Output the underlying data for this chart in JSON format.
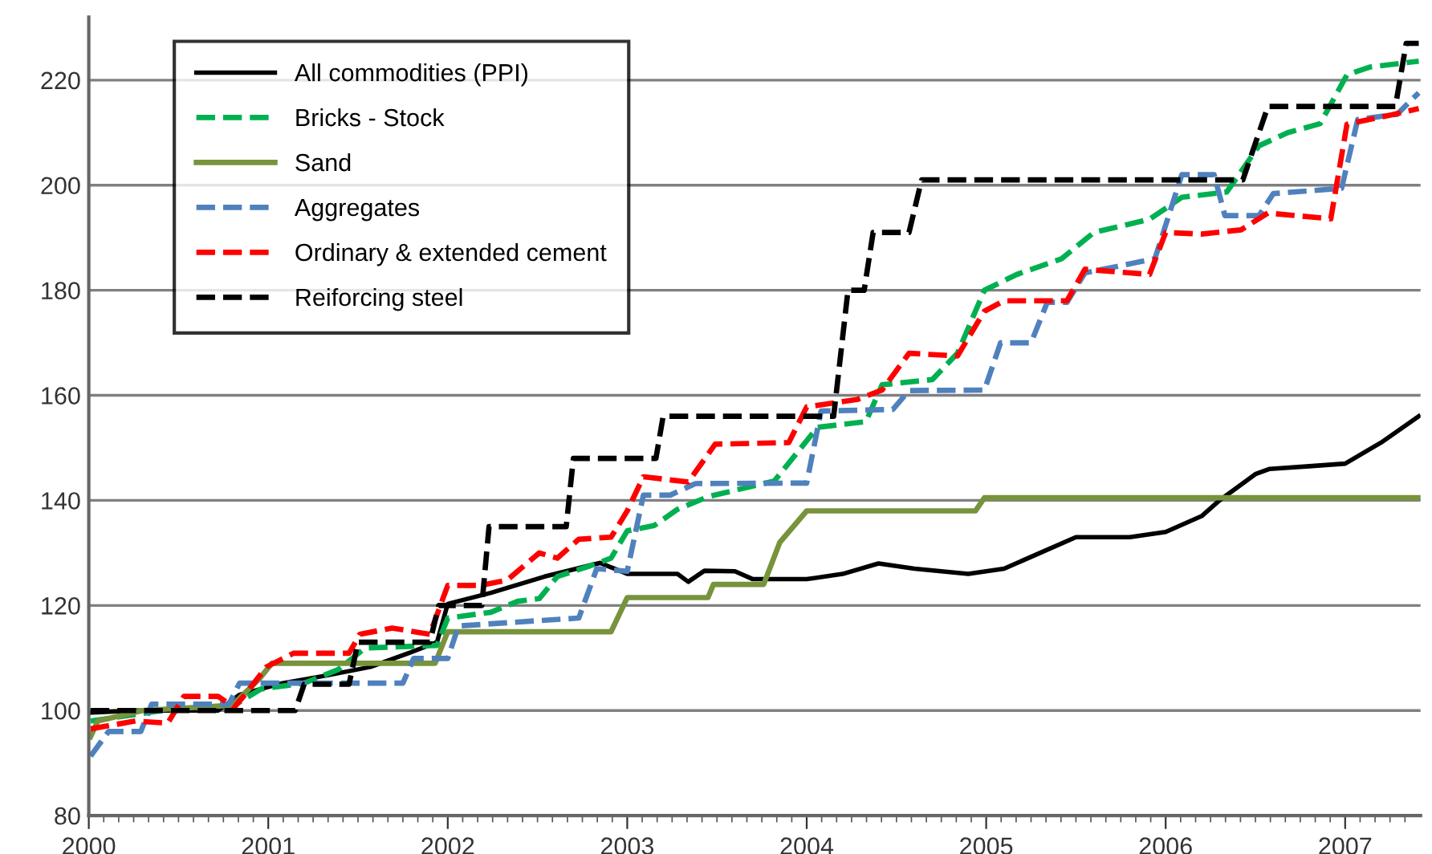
{
  "chart_data": {
    "type": "line",
    "xlim": [
      2000,
      2007.42
    ],
    "ylim": [
      80,
      232
    ],
    "yticks": [
      80,
      100,
      120,
      140,
      160,
      180,
      200,
      220
    ],
    "xticks": [
      2000,
      {
        "value": 2000.0833,
        "label": null
      },
      {
        "value": 2000.1667,
        "label": null
      },
      {
        "value": 2000.25,
        "label": null
      },
      {
        "value": 2000.3333,
        "label": null
      },
      {
        "value": 2000.4167,
        "label": null
      },
      {
        "value": 2000.5,
        "label": null
      },
      {
        "value": 2000.5833,
        "label": null
      },
      {
        "value": 2000.6667,
        "label": null
      },
      {
        "value": 2000.75,
        "label": null
      },
      {
        "value": 2000.8333,
        "label": null
      },
      {
        "value": 2000.9167,
        "label": null
      },
      2001,
      {
        "value": 2001.0833,
        "label": null
      },
      {
        "value": 2001.1667,
        "label": null
      },
      {
        "value": 2001.25,
        "label": null
      },
      {
        "value": 2001.3333,
        "label": null
      },
      {
        "value": 2001.4167,
        "label": null
      },
      {
        "value": 2001.5,
        "label": null
      },
      {
        "value": 2001.5833,
        "label": null
      },
      {
        "value": 2001.6667,
        "label": null
      },
      {
        "value": 2001.75,
        "label": null
      },
      {
        "value": 2001.8333,
        "label": null
      },
      {
        "value": 2001.9167,
        "label": null
      },
      2002,
      {
        "value": 2002.0833,
        "label": null
      },
      {
        "value": 2002.1667,
        "label": null
      },
      {
        "value": 2002.25,
        "label": null
      },
      {
        "value": 2002.3333,
        "label": null
      },
      {
        "value": 2002.4167,
        "label": null
      },
      {
        "value": 2002.5,
        "label": null
      },
      {
        "value": 2002.5833,
        "label": null
      },
      {
        "value": 2002.6667,
        "label": null
      },
      {
        "value": 2002.75,
        "label": null
      },
      {
        "value": 2002.8333,
        "label": null
      },
      {
        "value": 2002.9167,
        "label": null
      },
      2003,
      {
        "value": 2003.0833,
        "label": null
      },
      {
        "value": 2003.1667,
        "label": null
      },
      {
        "value": 2003.25,
        "label": null
      },
      {
        "value": 2003.3333,
        "label": null
      },
      {
        "value": 2003.4167,
        "label": null
      },
      {
        "value": 2003.5,
        "label": null
      },
      {
        "value": 2003.5833,
        "label": null
      },
      {
        "value": 2003.6667,
        "label": null
      },
      {
        "value": 2003.75,
        "label": null
      },
      {
        "value": 2003.8333,
        "label": null
      },
      {
        "value": 2003.9167,
        "label": null
      },
      2004,
      {
        "value": 2004.0833,
        "label": null
      },
      {
        "value": 2004.1667,
        "label": null
      },
      {
        "value": 2004.25,
        "label": null
      },
      {
        "value": 2004.3333,
        "label": null
      },
      {
        "value": 2004.4167,
        "label": null
      },
      {
        "value": 2004.5,
        "label": null
      },
      {
        "value": 2004.5833,
        "label": null
      },
      {
        "value": 2004.6667,
        "label": null
      },
      {
        "value": 2004.75,
        "label": null
      },
      {
        "value": 2004.8333,
        "label": null
      },
      {
        "value": 2004.9167,
        "label": null
      },
      2005,
      {
        "value": 2005.0833,
        "label": null
      },
      {
        "value": 2005.1667,
        "label": null
      },
      {
        "value": 2005.25,
        "label": null
      },
      {
        "value": 2005.3333,
        "label": null
      },
      {
        "value": 2005.4167,
        "label": null
      },
      {
        "value": 2005.5,
        "label": null
      },
      {
        "value": 2005.5833,
        "label": null
      },
      {
        "value": 2005.6667,
        "label": null
      },
      {
        "value": 2005.75,
        "label": null
      },
      {
        "value": 2005.8333,
        "label": null
      },
      {
        "value": 2005.9167,
        "label": null
      },
      2006,
      {
        "value": 2006.0833,
        "label": null
      },
      {
        "value": 2006.1667,
        "label": null
      },
      {
        "value": 2006.25,
        "label": null
      },
      {
        "value": 2006.3333,
        "label": null
      },
      {
        "value": 2006.4167,
        "label": null
      },
      {
        "value": 2006.5,
        "label": null
      },
      {
        "value": 2006.5833,
        "label": null
      },
      {
        "value": 2006.6667,
        "label": null
      },
      {
        "value": 2006.75,
        "label": null
      },
      {
        "value": 2006.8333,
        "label": null
      },
      {
        "value": 2006.9167,
        "label": null
      },
      2007,
      {
        "value": 2007.0833,
        "label": null
      },
      {
        "value": 2007.1667,
        "label": null
      },
      {
        "value": 2007.25,
        "label": null
      },
      {
        "value": 2007.3333,
        "label": null
      }
    ],
    "grid": "y",
    "legend": "top left",
    "marker": "none",
    "series": [
      {
        "name": "All commodities (PPI)",
        "color": "#000000",
        "line_style": "solid",
        "x": [
          2000.01,
          2000.26,
          2000.72,
          2000.84,
          2001.08,
          2001.33,
          2001.57,
          2001.78,
          2001.94,
          2002.0,
          2002.24,
          2002.54,
          2002.85,
          2003.0,
          2003.28,
          2003.34,
          2003.43,
          2003.6,
          2003.7,
          2004.0,
          2004.2,
          2004.4,
          2004.6,
          2004.9,
          2005.1,
          2005.3,
          2005.5,
          2005.8,
          2006.0,
          2006.2,
          2006.3,
          2006.5,
          2006.58,
          2006.8,
          2007.0,
          2007.2,
          2007.41
        ],
        "values": [
          99.6,
          100,
          100,
          103,
          105.2,
          106.7,
          108.3,
          110.9,
          113,
          120.3,
          122.4,
          125.5,
          128.1,
          126,
          126,
          124.5,
          126.6,
          126.5,
          125,
          125,
          126,
          128,
          127,
          126,
          127,
          130,
          133,
          133,
          134,
          137,
          140,
          145,
          146,
          146.5,
          147,
          151,
          156
        ]
      },
      {
        "name": "Bricks - Stock",
        "color": "#00b050",
        "line_style": "dashed",
        "x": [
          2000.01,
          2000.41,
          2000.81,
          2000.96,
          2001.2,
          2001.39,
          2001.54,
          2001.94,
          2002.0,
          2002.24,
          2002.39,
          2002.51,
          2002.61,
          2002.79,
          2002.91,
          2003.0,
          2003.15,
          2003.28,
          2003.45,
          2003.82,
          2004.06,
          2004.33,
          2004.42,
          2004.7,
          2004.84,
          2004.99,
          2005.17,
          2005.42,
          2005.6,
          2005.91,
          2006.09,
          2006.34,
          2006.52,
          2006.68,
          2006.86,
          2007.01,
          2007.14,
          2007.41
        ],
        "values": [
          98,
          100,
          101,
          104.1,
          105.2,
          107.8,
          111.9,
          112.4,
          117.6,
          118.7,
          120.8,
          121.3,
          125.5,
          127.5,
          129,
          134.2,
          135.2,
          138.3,
          140.7,
          143.7,
          153.9,
          155,
          162,
          163,
          168,
          180,
          183,
          186,
          191,
          193.5,
          197.7,
          198.7,
          207.5,
          210,
          211.7,
          221,
          222.5,
          223.6
        ]
      },
      {
        "name": "Sand",
        "color": "#77933c",
        "line_style": "solid",
        "x": [
          2000.01,
          2000.05,
          2000.3,
          2000.8,
          2000.95,
          2001.02,
          2001.93,
          2002.0,
          2002.91,
          2003.0,
          2003.45,
          2003.48,
          2003.76,
          2003.85,
          2004.0,
          2004.94,
          2004.99,
          2007.41
        ],
        "values": [
          95,
          98,
          100,
          101,
          106,
          109,
          109,
          115,
          115,
          121.5,
          121.5,
          124,
          124,
          132,
          138,
          138,
          140.5,
          140.5
        ]
      },
      {
        "name": "Aggregates",
        "color": "#4f81bd",
        "line_style": "dashed",
        "x": [
          2000.01,
          2000.11,
          2000.29,
          2000.35,
          2000.78,
          2000.84,
          2001.75,
          2001.81,
          2002.0,
          2002.06,
          2002.73,
          2002.83,
          2003.0,
          2003.09,
          2003.24,
          2003.38,
          2004.0,
          2004.08,
          2004.48,
          2004.57,
          2004.99,
          2005.08,
          2005.25,
          2005.34,
          2005.45,
          2005.55,
          2005.94,
          2006.09,
          2006.27,
          2006.33,
          2006.52,
          2006.6,
          2006.98,
          2007.07,
          2007.29,
          2007.41
        ],
        "values": [
          91.3,
          96,
          96,
          101.2,
          101.2,
          105.2,
          105.2,
          109.9,
          109.9,
          116.1,
          117.6,
          127,
          126.5,
          141,
          141,
          143.2,
          143.3,
          157,
          157.3,
          160.9,
          161,
          170,
          170,
          177.7,
          177.7,
          183.3,
          186,
          202,
          202,
          194.2,
          194.2,
          198.4,
          199.4,
          212.5,
          213.5,
          217.6
        ]
      },
      {
        "name": "Ordinary & extended cement",
        "color": "#ff0000",
        "line_style": "dashed",
        "x": [
          2000.01,
          2000.26,
          2000.44,
          2000.53,
          2000.72,
          2000.81,
          2000.87,
          2000.99,
          2001.14,
          2001.45,
          2001.51,
          2001.69,
          2001.9,
          2002.0,
          2002.18,
          2002.33,
          2002.51,
          2002.61,
          2002.73,
          2002.91,
          2003.0,
          2003.09,
          2003.34,
          2003.49,
          2003.9,
          2004.0,
          2004.28,
          2004.42,
          2004.57,
          2004.84,
          2004.99,
          2005.1,
          2005.45,
          2005.55,
          2005.91,
          2006.0,
          2006.2,
          2006.42,
          2006.57,
          2006.92,
          2007.01,
          2007.26,
          2007.41
        ],
        "values": [
          96.5,
          98,
          97.6,
          102.7,
          102.7,
          100.6,
          103,
          108.3,
          110.9,
          110.9,
          114.5,
          115.7,
          114.5,
          123.8,
          123.8,
          124.8,
          130,
          129,
          132.6,
          133,
          138,
          144.5,
          143.5,
          150.7,
          151,
          157.8,
          159.2,
          161,
          168,
          167.5,
          176,
          178,
          178,
          184,
          183,
          191,
          190.7,
          191.5,
          194.7,
          193.6,
          211.6,
          213.4,
          214.6
        ]
      },
      {
        "name": "Reiforcing steel",
        "color": "#000000",
        "line_style": "dashed",
        "x": [
          2000.01,
          2001.15,
          2001.2,
          2001.45,
          2001.5,
          2001.9,
          2001.95,
          2002.19,
          2002.23,
          2002.66,
          2002.7,
          2003.16,
          2003.2,
          2004.15,
          2004.23,
          2004.32,
          2004.37,
          2004.57,
          2004.64,
          2006.43,
          2006.57,
          2007.28,
          2007.34,
          2007.41
        ],
        "values": [
          100,
          100,
          105,
          105,
          113,
          113,
          120,
          120,
          135,
          135,
          148,
          148,
          156,
          156,
          180,
          180,
          191,
          191,
          201,
          201,
          215,
          215,
          227,
          227
        ]
      }
    ]
  }
}
